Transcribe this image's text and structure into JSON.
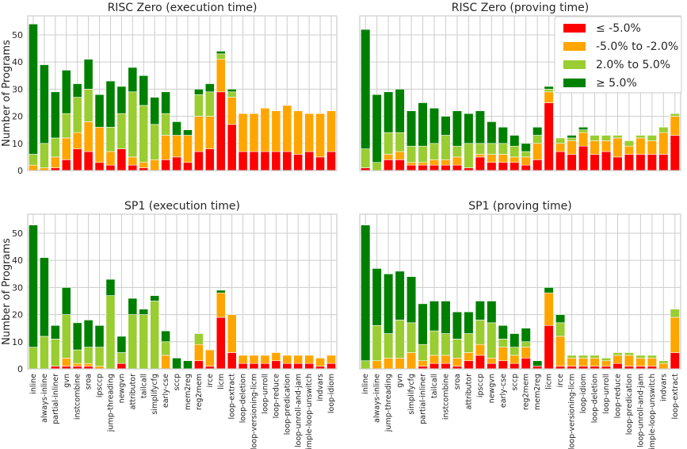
{
  "legend": {
    "placement": "top-right",
    "entries": [
      {
        "label": "≤ -5.0%",
        "color": "#ff0000"
      },
      {
        "label": "-5.0% to -2.0%",
        "color": "#ffa500"
      },
      {
        "label": "2.0% to 5.0%",
        "color": "#9acd32"
      },
      {
        "label": "≥ 5.0%",
        "color": "#008000"
      }
    ]
  },
  "chart_data": [
    {
      "type": "bar",
      "stacked": true,
      "title": "RISC Zero (execution time)",
      "ylabel": "Number of Programs",
      "ylim": [
        0,
        57
      ],
      "yticks": [
        0,
        10,
        20,
        30,
        40,
        50
      ],
      "categories": [
        "inline",
        "always-inline",
        "partial-inliner",
        "gvn",
        "instcombine",
        "sroa",
        "ipsccp",
        "jump-threading",
        "newgvn",
        "attributor",
        "tailcall",
        "simplifycfg",
        "early-cse",
        "sccp",
        "mem2reg",
        "reg2mem",
        "irce",
        "licm",
        "loop-extract",
        "loop-deletion",
        "loop-versioning-licm",
        "loop-unroll",
        "loop-reduce",
        "loop-predication",
        "loop-unroll-and-jam",
        "simple-loop-unswitch",
        "indvars",
        "loop-idiom"
      ],
      "series": [
        {
          "name": "≤ -5.0%",
          "values": [
            0,
            0,
            1,
            4,
            8,
            7,
            3,
            2,
            8,
            2,
            1,
            0,
            4,
            5,
            3,
            7,
            8,
            29,
            17,
            7,
            7,
            7,
            7,
            7,
            6,
            7,
            5,
            7
          ]
        },
        {
          "name": "-5.0% to -2.0%",
          "values": [
            2,
            1,
            4,
            8,
            6,
            11,
            13,
            5,
            0,
            3,
            2,
            4,
            9,
            8,
            10,
            13,
            12,
            12,
            10,
            14,
            14,
            16,
            15,
            17,
            16,
            14,
            16,
            15
          ]
        },
        {
          "name": "2.0% to 5.0%",
          "values": [
            4,
            9,
            7,
            9,
            13,
            12,
            0,
            9,
            13,
            24,
            21,
            13,
            8,
            0,
            0,
            8,
            9,
            2,
            2,
            0,
            0,
            0,
            0,
            0,
            0,
            0,
            0,
            0
          ]
        },
        {
          "name": "≥ 5.0%",
          "values": [
            48,
            29,
            17,
            16,
            5,
            11,
            12,
            17,
            10,
            9,
            11,
            10,
            8,
            5,
            2,
            2,
            3,
            1,
            1,
            0,
            0,
            0,
            0,
            0,
            0,
            0,
            0,
            0
          ]
        }
      ]
    },
    {
      "type": "bar",
      "stacked": true,
      "title": "RISC Zero (proving time)",
      "ylim": [
        0,
        57
      ],
      "categories": [
        "inline",
        "always-inline",
        "jump-threading",
        "gvn",
        "simplifycfg",
        "partial-inliner",
        "tailcall",
        "instcombine",
        "sroa",
        "attributor",
        "ipsccp",
        "newgvn",
        "early-cse",
        "sccp",
        "reg2mem",
        "mem2reg",
        "licm",
        "irce",
        "loop-versioning-licm",
        "loop-idiom",
        "loop-deletion",
        "loop-unroll",
        "loop-reduce",
        "loop-predication",
        "loop-unroll-and-jam",
        "simple-loop-unswitch",
        "indvars",
        "loop-extract"
      ],
      "series": [
        {
          "name": "≤ -5.0%",
          "values": [
            1,
            0,
            4,
            4,
            2,
            2,
            2,
            2,
            2,
            1,
            5,
            3,
            3,
            3,
            2,
            4,
            25,
            7,
            6,
            9,
            6,
            7,
            5,
            6,
            6,
            6,
            6,
            13
          ]
        },
        {
          "name": "-5.0% to -2.0%",
          "values": [
            0,
            0,
            2,
            3,
            1,
            1,
            2,
            2,
            3,
            0,
            1,
            3,
            3,
            2,
            3,
            6,
            4,
            3,
            5,
            5,
            5,
            4,
            7,
            3,
            6,
            5,
            8,
            7
          ]
        },
        {
          "name": "2.0% to 5.0%",
          "values": [
            7,
            3,
            8,
            7,
            6,
            6,
            6,
            9,
            4,
            9,
            4,
            4,
            4,
            4,
            2,
            3,
            1,
            2,
            1,
            1,
            2,
            2,
            1,
            2,
            1,
            2,
            2,
            1
          ]
        },
        {
          "name": "≥ 5.0%",
          "values": [
            44,
            25,
            15,
            16,
            13,
            16,
            13,
            7,
            13,
            11,
            12,
            8,
            6,
            4,
            3,
            3,
            1,
            0,
            1,
            1,
            0,
            0,
            0,
            0,
            0,
            0,
            0,
            0
          ]
        }
      ]
    },
    {
      "type": "bar",
      "stacked": true,
      "title": "SP1 (execution time)",
      "ylabel": "Number of Programs",
      "ylim": [
        0,
        57
      ],
      "categories": [
        "inline",
        "always-inline",
        "partial-inliner",
        "gvn",
        "instcombine",
        "sroa",
        "ipsccp",
        "jump-threading",
        "newgvn",
        "attributor",
        "tailcall",
        "simplifycfg",
        "early-cse",
        "sccp",
        "mem2reg",
        "reg2mem",
        "irce",
        "licm",
        "loop-extract",
        "loop-deletion",
        "loop-versioning-licm",
        "loop-unroll",
        "loop-reduce",
        "loop-predication",
        "loop-unroll-and-jam",
        "simple-loop-unswitch",
        "indvars",
        "loop-idiom"
      ],
      "series": [
        {
          "name": "≤ -5.0%",
          "values": [
            0,
            0,
            1,
            1,
            1,
            1,
            0,
            0,
            2,
            0,
            0,
            0,
            0,
            0,
            0,
            3,
            1,
            19,
            6,
            2,
            2,
            2,
            3,
            2,
            2,
            2,
            1,
            2
          ]
        },
        {
          "name": "-5.0% to -2.0%",
          "values": [
            0,
            0,
            0,
            3,
            1,
            1,
            1,
            0,
            0,
            0,
            0,
            0,
            5,
            0,
            0,
            6,
            6,
            9,
            14,
            3,
            3,
            3,
            3,
            3,
            3,
            3,
            3,
            3
          ]
        },
        {
          "name": "2.0% to 5.0%",
          "values": [
            8,
            12,
            10,
            16,
            5,
            6,
            7,
            27,
            4,
            20,
            20,
            25,
            5,
            0,
            0,
            4,
            0,
            0,
            0,
            0,
            0,
            0,
            0,
            0,
            0,
            0,
            0,
            0
          ]
        },
        {
          "name": "≥ 5.0%",
          "values": [
            45,
            29,
            5,
            10,
            10,
            10,
            8,
            6,
            6,
            6,
            2,
            2,
            4,
            4,
            3,
            0,
            0,
            1,
            0,
            0,
            0,
            0,
            0,
            0,
            0,
            0,
            0,
            0
          ]
        }
      ]
    },
    {
      "type": "bar",
      "stacked": true,
      "title": "SP1 (proving time)",
      "ylim": [
        0,
        57
      ],
      "categories": [
        "inline",
        "always-inline",
        "jump-threading",
        "gvn",
        "simplifycfg",
        "partial-inliner",
        "tailcall",
        "instcombine",
        "sroa",
        "attributor",
        "ipsccp",
        "newgvn",
        "early-cse",
        "sccp",
        "reg2mem",
        "mem2reg",
        "licm",
        "irce",
        "loop-versioning-licm",
        "loop-idiom",
        "loop-deletion",
        "loop-unroll",
        "loop-reduce",
        "loop-predication",
        "loop-unroll-and-jam",
        "simple-loop-unswitch",
        "indvars",
        "loop-extract"
      ],
      "series": [
        {
          "name": "≤ -5.0%",
          "values": [
            0,
            0,
            0,
            0,
            0,
            1,
            2,
            2,
            1,
            3,
            5,
            2,
            3,
            2,
            4,
            1,
            16,
            1,
            1,
            1,
            1,
            1,
            2,
            1,
            1,
            1,
            0,
            6
          ]
        },
        {
          "name": "-5.0% to -2.0%",
          "values": [
            0,
            3,
            4,
            4,
            6,
            2,
            3,
            3,
            3,
            3,
            4,
            2,
            5,
            3,
            4,
            0,
            12,
            11,
            3,
            3,
            3,
            2,
            3,
            4,
            3,
            3,
            2,
            13
          ]
        },
        {
          "name": "2.0% to 5.0%",
          "values": [
            3,
            13,
            9,
            14,
            11,
            6,
            9,
            8,
            7,
            7,
            9,
            13,
            3,
            3,
            2,
            0,
            0,
            5,
            1,
            1,
            1,
            1,
            1,
            1,
            1,
            1,
            1,
            3
          ]
        },
        {
          "name": "≥ 5.0%",
          "values": [
            50,
            21,
            22,
            18,
            17,
            15,
            11,
            12,
            10,
            8,
            7,
            8,
            5,
            5,
            5,
            2,
            2,
            3,
            0,
            0,
            0,
            0,
            0,
            0,
            0,
            0,
            0,
            0
          ]
        }
      ]
    }
  ]
}
